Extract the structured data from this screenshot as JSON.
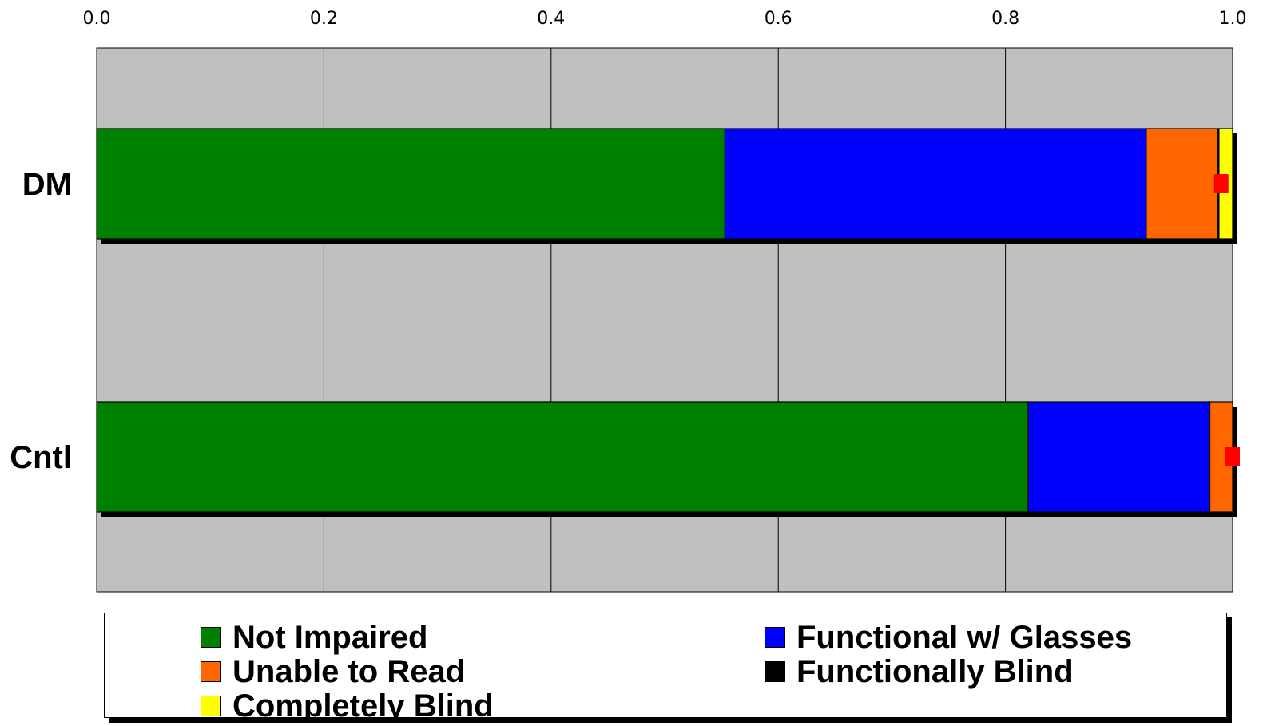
{
  "chart_data": {
    "type": "bar",
    "orientation": "horizontal",
    "stacked": true,
    "categories": [
      "DM",
      "Cntl"
    ],
    "series": [
      {
        "name": "Not Impaired",
        "color": "#008000",
        "values": [
          0.553,
          0.82
        ]
      },
      {
        "name": "Functional w/ Glasses",
        "color": "#0000ff",
        "values": [
          0.371,
          0.16
        ]
      },
      {
        "name": "Unable to Read",
        "color": "#ff6600",
        "values": [
          0.063,
          0.02
        ]
      },
      {
        "name": "Functionally Blind",
        "color": "#000000",
        "values": [
          0.001,
          0.0
        ]
      },
      {
        "name": "Completely Blind",
        "color": "#ffff00",
        "values": [
          0.012,
          0.0
        ]
      }
    ],
    "error_marks": [
      {
        "category": "DM",
        "value": 0.99,
        "color": "#ff0000"
      },
      {
        "category": "Cntl",
        "value": 1.0,
        "color": "#ff0000"
      }
    ],
    "xlim": [
      0,
      1
    ],
    "xticks": [
      "0.0",
      "0.2",
      "0.4",
      "0.6",
      "0.8",
      "1.0"
    ],
    "x_axis_position": "top",
    "xlabel": "",
    "ylabel": "",
    "title": "",
    "grid": true,
    "plot_background": "#c0c0c0",
    "legend_position": "bottom"
  },
  "legend": {
    "items": [
      {
        "label": "Not Impaired",
        "color": "#008000"
      },
      {
        "label": "Functional w/ Glasses",
        "color": "#0000ff"
      },
      {
        "label": "Unable to Read",
        "color": "#ff6600"
      },
      {
        "label": "Functionally Blind",
        "color": "#000000"
      },
      {
        "label": "Completely Blind",
        "color": "#ffff00"
      }
    ]
  }
}
